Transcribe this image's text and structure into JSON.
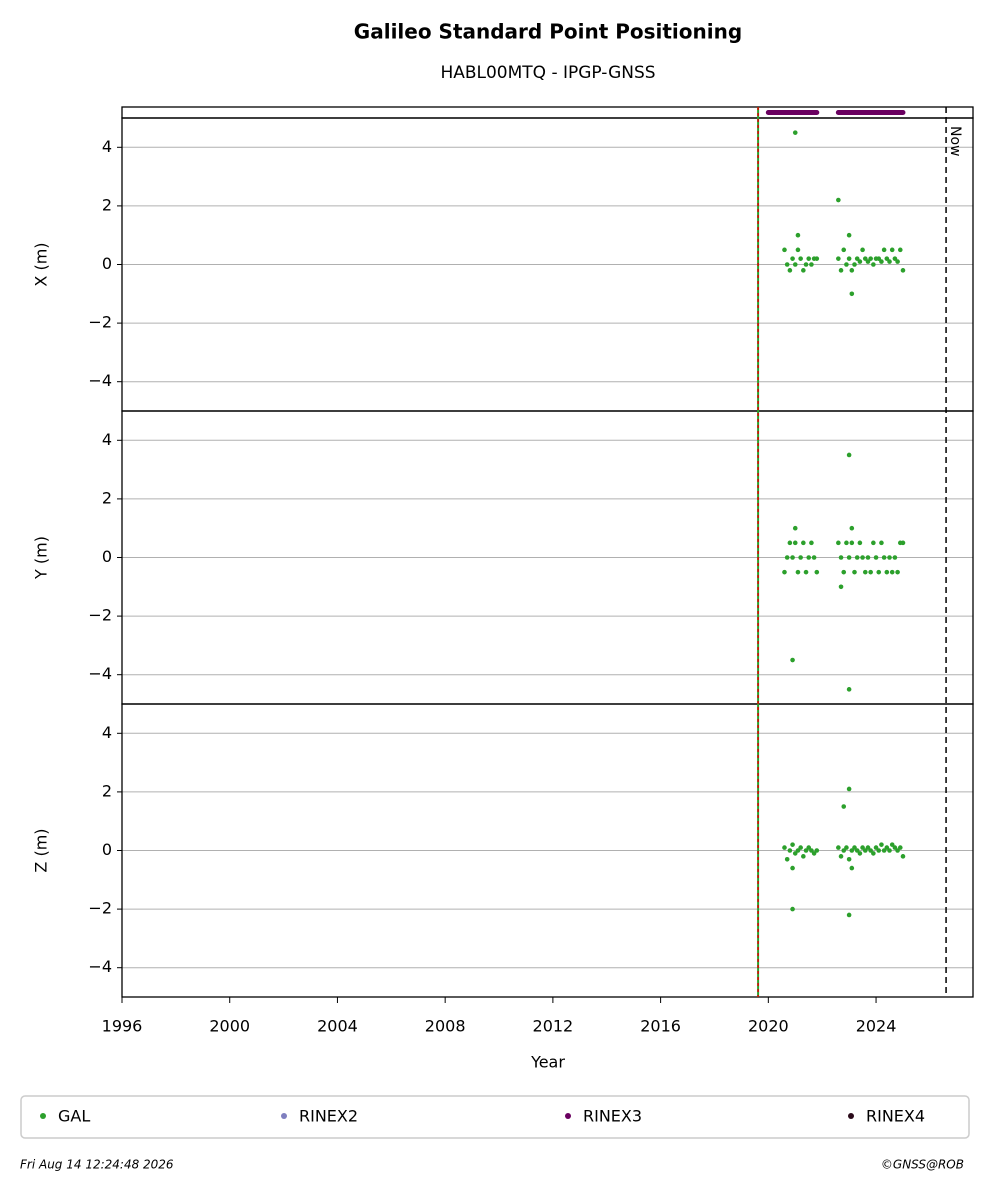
{
  "title": "Galileo Standard Point Positioning",
  "subtitle": "HABL00MTQ - IPGP-GNSS",
  "xlabel": "Year",
  "xlim": [
    1996,
    2027.6
  ],
  "xticks": [
    1996,
    2000,
    2004,
    2008,
    2012,
    2016,
    2020,
    2024
  ],
  "start_line": 2019.62,
  "now_line": {
    "x": 2026.6,
    "label": "Now"
  },
  "rinex": [
    {
      "name": "RINEX2",
      "color": "#7f7fbf",
      "ranges": []
    },
    {
      "name": "RINEX3",
      "color": "#6a0060",
      "ranges": [
        [
          2020.0,
          2021.8
        ],
        [
          2022.6,
          2025.0
        ]
      ]
    },
    {
      "name": "RINEX4",
      "color": "#2a0a1a",
      "ranges": []
    }
  ],
  "footer_left": "Fri Aug 14 12:24:48 2026",
  "footer_right": "©GNSS@ROB",
  "chart_data": [
    {
      "type": "scatter",
      "ylabel": "X (m)",
      "ylim": [
        -5,
        5
      ],
      "yticks": [
        {
          "value": -4,
          "label": "−4"
        },
        {
          "value": -2,
          "label": "−2"
        },
        0,
        2,
        4
      ],
      "grid": true,
      "x": [
        2020.6,
        2020.7,
        2020.8,
        2020.9,
        2021.0,
        2021.1,
        2021.2,
        2021.3,
        2021.4,
        2021.5,
        2021.6,
        2021.7,
        2021.8,
        2022.6,
        2022.7,
        2022.8,
        2022.9,
        2023.0,
        2023.1,
        2023.2,
        2023.3,
        2023.4,
        2023.5,
        2023.6,
        2023.7,
        2023.8,
        2023.9,
        2024.0,
        2024.1,
        2024.2,
        2024.3,
        2024.4,
        2024.5,
        2024.6,
        2024.7,
        2024.8,
        2024.9,
        2025.0,
        2021.0,
        2021.1,
        2022.6,
        2023.0,
        2023.1
      ],
      "series": [
        {
          "name": "GAL",
          "color": "#2ca02c",
          "values": [
            0.5,
            0,
            -0.2,
            0.2,
            0,
            0.5,
            0.2,
            -0.2,
            0,
            0.2,
            0,
            0.2,
            0.2,
            0.2,
            -0.2,
            0.5,
            0,
            0.2,
            -0.2,
            0,
            0.2,
            0.1,
            0.5,
            0.2,
            0.1,
            0.2,
            0,
            0.2,
            0.2,
            0.1,
            0.5,
            0.2,
            0.1,
            0.5,
            0.2,
            0.1,
            0.5,
            -0.2,
            4.5,
            1.0,
            2.2,
            1.0,
            -1.0
          ]
        }
      ]
    },
    {
      "type": "scatter",
      "ylabel": "Y (m)",
      "ylim": [
        -5,
        5
      ],
      "yticks": [
        {
          "value": -4,
          "label": "−4"
        },
        {
          "value": -2,
          "label": "−2"
        },
        0,
        2,
        4
      ],
      "grid": true,
      "x": [
        2020.6,
        2020.7,
        2020.8,
        2020.9,
        2021.0,
        2021.1,
        2021.2,
        2021.3,
        2021.4,
        2021.5,
        2021.6,
        2021.7,
        2021.8,
        2022.6,
        2022.7,
        2022.8,
        2022.9,
        2023.0,
        2023.1,
        2023.2,
        2023.3,
        2023.4,
        2023.5,
        2023.6,
        2023.7,
        2023.8,
        2023.9,
        2024.0,
        2024.1,
        2024.2,
        2024.3,
        2024.4,
        2024.5,
        2024.6,
        2024.7,
        2024.8,
        2024.9,
        2025.0,
        2020.9,
        2021.0,
        2023.0,
        2023.0,
        2022.7,
        2023.1
      ],
      "series": [
        {
          "name": "GAL",
          "color": "#2ca02c",
          "values": [
            -0.5,
            0,
            0.5,
            0,
            0.5,
            -0.5,
            0,
            0.5,
            -0.5,
            0,
            0.5,
            0,
            -0.5,
            0.5,
            0,
            -0.5,
            0.5,
            0,
            0.5,
            -0.5,
            0,
            0.5,
            0,
            -0.5,
            0,
            -0.5,
            0.5,
            0,
            -0.5,
            0.5,
            0,
            -0.5,
            0,
            -0.5,
            0,
            -0.5,
            0.5,
            0.5,
            -3.5,
            1.0,
            3.5,
            -4.5,
            -1.0,
            1.0
          ]
        }
      ]
    },
    {
      "type": "scatter",
      "ylabel": "Z (m)",
      "ylim": [
        -5,
        5
      ],
      "yticks": [
        {
          "value": -4,
          "label": "−4"
        },
        {
          "value": -2,
          "label": "−2"
        },
        0,
        2,
        4
      ],
      "grid": true,
      "x": [
        2020.6,
        2020.7,
        2020.8,
        2020.9,
        2021.0,
        2021.1,
        2021.2,
        2021.3,
        2021.4,
        2021.5,
        2021.6,
        2021.7,
        2021.8,
        2022.6,
        2022.7,
        2022.8,
        2022.9,
        2023.0,
        2023.1,
        2023.2,
        2023.3,
        2023.4,
        2023.5,
        2023.6,
        2023.7,
        2023.8,
        2023.9,
        2024.0,
        2024.1,
        2024.2,
        2024.3,
        2024.4,
        2024.5,
        2024.6,
        2024.7,
        2024.8,
        2024.9,
        2025.0,
        2020.9,
        2020.9,
        2022.8,
        2023.0,
        2023.0,
        2023.1
      ],
      "series": [
        {
          "name": "GAL",
          "color": "#2ca02c",
          "values": [
            0.1,
            -0.3,
            0,
            0.2,
            -0.1,
            0,
            0.1,
            -0.2,
            0,
            0.1,
            0,
            -0.1,
            0,
            0.1,
            -0.2,
            0,
            0.1,
            -0.3,
            0,
            0.1,
            0,
            -0.1,
            0.1,
            0,
            0.1,
            0,
            -0.1,
            0.1,
            0,
            0.2,
            0,
            0.1,
            0,
            0.2,
            0.1,
            0,
            0.1,
            -0.2,
            -2.0,
            -0.6,
            1.5,
            2.1,
            -2.2,
            -0.6
          ]
        }
      ]
    }
  ]
}
